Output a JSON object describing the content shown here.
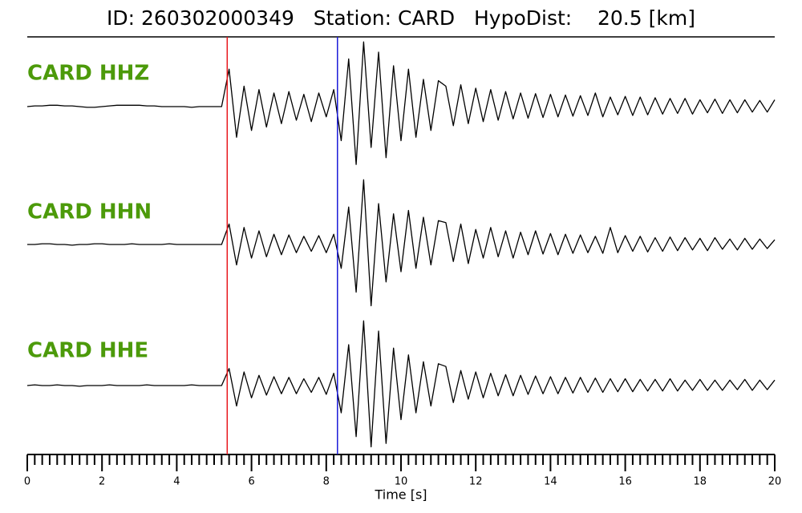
{
  "chart_data": {
    "type": "line",
    "title": "ID: 260302000349   Station: CARD   HypoDist:    20.5 [km]",
    "xlabel": "Time [s]",
    "xlim": [
      0,
      20
    ],
    "xticks": [
      0,
      2,
      4,
      6,
      8,
      10,
      12,
      14,
      16,
      18,
      20
    ],
    "ylim": [
      -1,
      1
    ],
    "x": [
      0,
      0.2,
      0.4,
      0.6,
      0.8,
      1,
      1.2,
      1.4,
      1.6,
      1.8,
      2,
      2.2,
      2.4,
      2.6,
      2.8,
      3,
      3.2,
      3.4,
      3.6,
      3.8,
      4,
      4.2,
      4.4,
      4.6,
      4.8,
      5,
      5.2,
      5.4,
      5.6,
      5.8,
      6,
      6.2,
      6.4,
      6.6,
      6.8,
      7,
      7.2,
      7.4,
      7.6,
      7.8,
      8,
      8.2,
      8.4,
      8.6,
      8.8,
      9,
      9.2,
      9.4,
      9.6,
      9.8,
      10,
      10.2,
      10.4,
      10.6,
      10.8,
      11,
      11.2,
      11.4,
      11.6,
      11.8,
      12,
      12.2,
      12.4,
      12.6,
      12.8,
      13,
      13.2,
      13.4,
      13.6,
      13.8,
      14,
      14.2,
      14.4,
      14.6,
      14.8,
      15,
      15.2,
      15.4,
      15.6,
      15.8,
      16,
      16.2,
      16.4,
      16.6,
      16.8,
      17,
      17.2,
      17.4,
      17.6,
      17.8,
      18,
      18.2,
      18.4,
      18.6,
      18.8,
      19,
      19.2,
      19.4,
      19.6,
      19.8,
      20
    ],
    "series": [
      {
        "name": "CARD HHZ",
        "color": "#000000",
        "values": [
          0,
          0.01,
          0.01,
          0.02,
          0.02,
          0.01,
          0.01,
          0,
          -0.01,
          -0.01,
          0,
          0.01,
          0.02,
          0.02,
          0.02,
          0.02,
          0.01,
          0.01,
          0,
          0,
          0,
          0,
          -0.01,
          0,
          0,
          0,
          0,
          0.55,
          -0.45,
          0.3,
          -0.35,
          0.25,
          -0.3,
          0.2,
          -0.25,
          0.22,
          -0.2,
          0.18,
          -0.22,
          0.2,
          -0.15,
          0.25,
          -0.5,
          0.7,
          -0.85,
          0.95,
          -0.6,
          0.8,
          -0.75,
          0.6,
          -0.5,
          0.55,
          -0.45,
          0.4,
          -0.35,
          0.38,
          0.3,
          -0.28,
          0.32,
          -0.25,
          0.27,
          -0.22,
          0.25,
          -0.2,
          0.22,
          -0.18,
          0.2,
          -0.17,
          0.19,
          -0.16,
          0.18,
          -0.15,
          0.17,
          -0.14,
          0.16,
          -0.13,
          0.2,
          -0.15,
          0.14,
          -0.12,
          0.15,
          -0.13,
          0.14,
          -0.12,
          0.13,
          -0.11,
          0.12,
          -0.1,
          0.12,
          -0.11,
          0.1,
          -0.09,
          0.11,
          -0.1,
          0.1,
          -0.09,
          0.1,
          -0.08,
          0.09,
          -0.08,
          0.1
        ]
      },
      {
        "name": "CARD HHN",
        "color": "#000000",
        "values": [
          0,
          0,
          0.01,
          0.01,
          0,
          0,
          -0.01,
          0,
          0,
          0.01,
          0.01,
          0,
          0,
          0,
          0.01,
          0,
          0,
          0,
          0,
          0.01,
          0,
          0,
          0,
          0,
          0,
          0,
          0,
          0.3,
          -0.3,
          0.25,
          -0.2,
          0.2,
          -0.18,
          0.15,
          -0.15,
          0.14,
          -0.12,
          0.12,
          -0.1,
          0.13,
          -0.12,
          0.15,
          -0.35,
          0.55,
          -0.7,
          0.95,
          -0.9,
          0.6,
          -0.55,
          0.45,
          -0.4,
          0.5,
          -0.35,
          0.4,
          -0.3,
          0.35,
          0.32,
          -0.25,
          0.3,
          -0.28,
          0.22,
          -0.2,
          0.25,
          -0.18,
          0.2,
          -0.2,
          0.18,
          -0.15,
          0.2,
          -0.14,
          0.16,
          -0.15,
          0.15,
          -0.13,
          0.14,
          -0.12,
          0.12,
          -0.13,
          0.25,
          -0.12,
          0.13,
          -0.1,
          0.12,
          -0.11,
          0.1,
          -0.1,
          0.11,
          -0.09,
          0.1,
          -0.08,
          0.09,
          -0.09,
          0.1,
          -0.07,
          0.08,
          -0.08,
          0.09,
          -0.07,
          0.08,
          -0.06,
          0.07
        ]
      },
      {
        "name": "CARD HHE",
        "color": "#000000",
        "values": [
          0,
          0.01,
          0,
          0,
          0.01,
          0,
          0,
          -0.01,
          0,
          0,
          0,
          0.01,
          0,
          0,
          0,
          0,
          0.01,
          0,
          0,
          0,
          0,
          0,
          0.01,
          0,
          0,
          0,
          0,
          0.25,
          -0.3,
          0.2,
          -0.18,
          0.15,
          -0.14,
          0.13,
          -0.12,
          0.12,
          -0.12,
          0.1,
          -0.1,
          0.12,
          -0.13,
          0.18,
          -0.4,
          0.6,
          -0.75,
          0.95,
          -0.9,
          0.8,
          -0.85,
          0.55,
          -0.5,
          0.45,
          -0.4,
          0.35,
          -0.3,
          0.32,
          0.28,
          -0.25,
          0.22,
          -0.2,
          0.2,
          -0.18,
          0.18,
          -0.15,
          0.16,
          -0.15,
          0.15,
          -0.13,
          0.14,
          -0.12,
          0.13,
          -0.12,
          0.12,
          -0.11,
          0.12,
          -0.1,
          0.11,
          -0.1,
          0.1,
          -0.09,
          0.1,
          -0.09,
          0.09,
          -0.08,
          0.09,
          -0.08,
          0.1,
          -0.08,
          0.08,
          -0.07,
          0.09,
          -0.07,
          0.08,
          -0.07,
          0.08,
          -0.06,
          0.09,
          -0.07,
          0.08,
          -0.06,
          0.08
        ]
      }
    ],
    "markers": [
      {
        "x": 5.35,
        "color": "#e8161b"
      },
      {
        "x": 8.3,
        "color": "#1a1ad8"
      }
    ]
  }
}
